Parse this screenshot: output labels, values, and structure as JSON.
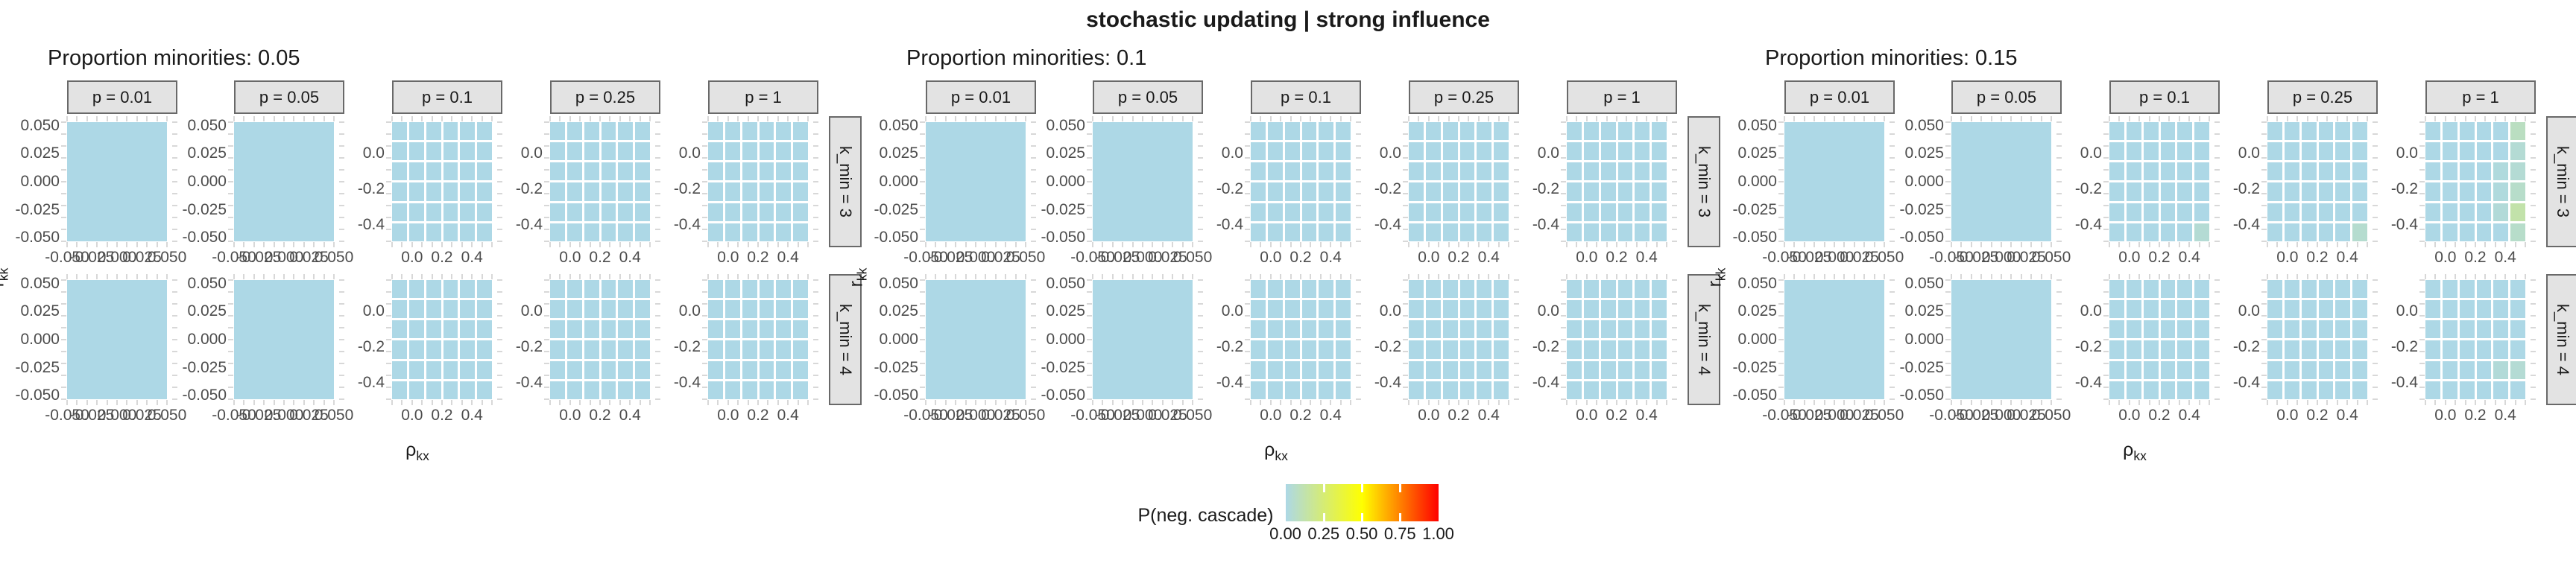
{
  "title": "stochastic updating | strong influence",
  "groups": [
    {
      "header": "Proportion minorities: 0.05"
    },
    {
      "header": "Proportion minorities: 0.1"
    },
    {
      "header": "Proportion minorities: 0.15"
    }
  ],
  "facets": {
    "col_strips": [
      "p = 0.01",
      "p = 0.05",
      "p = 0.1",
      "p = 0.25",
      "p = 1"
    ],
    "row_strips": [
      "k_min = 3",
      "k_min = 4"
    ]
  },
  "axes": {
    "x_title": {
      "base": "ρ",
      "sub": "kx"
    },
    "y_title": {
      "base": "r",
      "sub": "kk"
    },
    "wide_y_ticks": [
      "0.050",
      "0.025",
      "0.000",
      "-0.025",
      "-0.050"
    ],
    "wide_x_ticks": [
      "-0.050",
      "-0.025",
      "0.000",
      "0.025",
      "0.050"
    ],
    "narrow_y_ticks": [
      "0.0",
      "-0.2",
      "-0.4"
    ],
    "narrow_x_ticks": [
      "0.0",
      "0.2",
      "0.4"
    ]
  },
  "legend": {
    "title": "P(neg. cascade)",
    "tick_labels": [
      "0.00",
      "0.25",
      "0.50",
      "0.75",
      "1.00"
    ]
  },
  "colors": {
    "tile_low": "#ADD8E6",
    "tile_mid": "#FFFF00",
    "tile_high": "#FF0000",
    "strip_bg": "#E3E3E3",
    "strip_border": "#696969",
    "axis_tick": "#D8D8D8",
    "tick_text": "#4D4D4D"
  },
  "chart_data": {
    "type": "heatmap",
    "title": "stochastic updating | strong influence",
    "facets": {
      "groups": [
        "Proportion minorities: 0.05",
        "Proportion minorities: 0.1",
        "Proportion minorities: 0.15"
      ],
      "columns_p": [
        0.01,
        0.05,
        0.1,
        0.25,
        1
      ],
      "rows_k_min": [
        3,
        4
      ]
    },
    "xlabel": "ρ_kx",
    "ylabel": "r_kk",
    "panel_axis_styles": {
      "wide_columns_p": [
        0.01,
        0.05
      ],
      "wide_x_ticks": [
        -0.05,
        -0.025,
        0.0,
        0.025,
        0.05
      ],
      "wide_y_ticks": [
        0.05,
        0.025,
        0.0,
        -0.025,
        -0.05
      ],
      "narrow_columns_p": [
        0.1,
        0.25,
        1
      ],
      "narrow_x_ticks": [
        0.0,
        0.2,
        0.4
      ],
      "narrow_y_ticks": [
        0.0,
        -0.2,
        -0.4
      ],
      "narrow_grid": [
        6,
        6
      ]
    },
    "fill": {
      "label": "P(neg. cascade)",
      "range": [
        0,
        1
      ],
      "legend_ticks": [
        0.0,
        0.25,
        0.5,
        0.75,
        1.0
      ],
      "colormap": [
        "#ADD8E6",
        "#FFFF00",
        "#FF0000"
      ]
    },
    "baseline_value": 0,
    "nonzero_cells": [
      {
        "group": "Proportion minorities: 0.15",
        "k_min": 3,
        "p": 0.1,
        "row": 6,
        "col": 6,
        "value": 0.04
      },
      {
        "group": "Proportion minorities: 0.15",
        "k_min": 3,
        "p": 0.25,
        "row": 6,
        "col": 6,
        "value": 0.05
      },
      {
        "group": "Proportion minorities: 0.15",
        "k_min": 3,
        "p": 1,
        "row": 1,
        "col": 6,
        "value": 0.08
      },
      {
        "group": "Proportion minorities: 0.15",
        "k_min": 3,
        "p": 1,
        "row": 2,
        "col": 6,
        "value": 0.04
      },
      {
        "group": "Proportion minorities: 0.15",
        "k_min": 3,
        "p": 1,
        "row": 3,
        "col": 5,
        "value": 0.02
      },
      {
        "group": "Proportion minorities: 0.15",
        "k_min": 3,
        "p": 1,
        "row": 3,
        "col": 6,
        "value": 0.04
      },
      {
        "group": "Proportion minorities: 0.15",
        "k_min": 3,
        "p": 1,
        "row": 4,
        "col": 5,
        "value": 0.02
      },
      {
        "group": "Proportion minorities: 0.15",
        "k_min": 3,
        "p": 1,
        "row": 4,
        "col": 6,
        "value": 0.06
      },
      {
        "group": "Proportion minorities: 0.15",
        "k_min": 3,
        "p": 1,
        "row": 5,
        "col": 5,
        "value": 0.03
      },
      {
        "group": "Proportion minorities: 0.15",
        "k_min": 3,
        "p": 1,
        "row": 5,
        "col": 6,
        "value": 0.13
      },
      {
        "group": "Proportion minorities: 0.15",
        "k_min": 3,
        "p": 1,
        "row": 6,
        "col": 6,
        "value": 0.06
      },
      {
        "group": "Proportion minorities: 0.15",
        "k_min": 4,
        "p": 1,
        "row": 5,
        "col": 5,
        "value": 0.03
      },
      {
        "group": "Proportion minorities: 0.15",
        "k_min": 4,
        "p": 1,
        "row": 5,
        "col": 6,
        "value": 0.04
      }
    ]
  }
}
